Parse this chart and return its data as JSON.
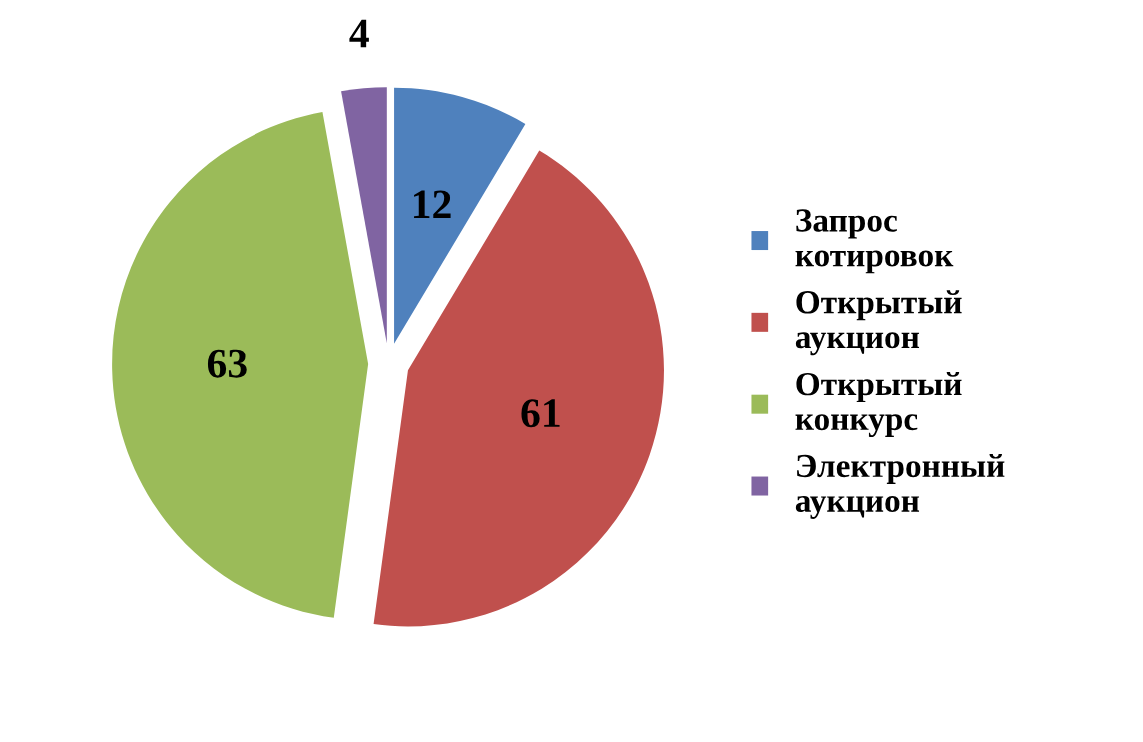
{
  "chart_data": {
    "type": "pie",
    "categories": [
      "Запрос котировок",
      "Открытый аукцион",
      "Открытый конкурс",
      "Электронный аукцион"
    ],
    "values": [
      12,
      61,
      63,
      4
    ],
    "colors": [
      "#4f81bd",
      "#c0504d",
      "#9bbb59",
      "#8064a2"
    ],
    "data_labels": true,
    "legend": "right"
  }
}
